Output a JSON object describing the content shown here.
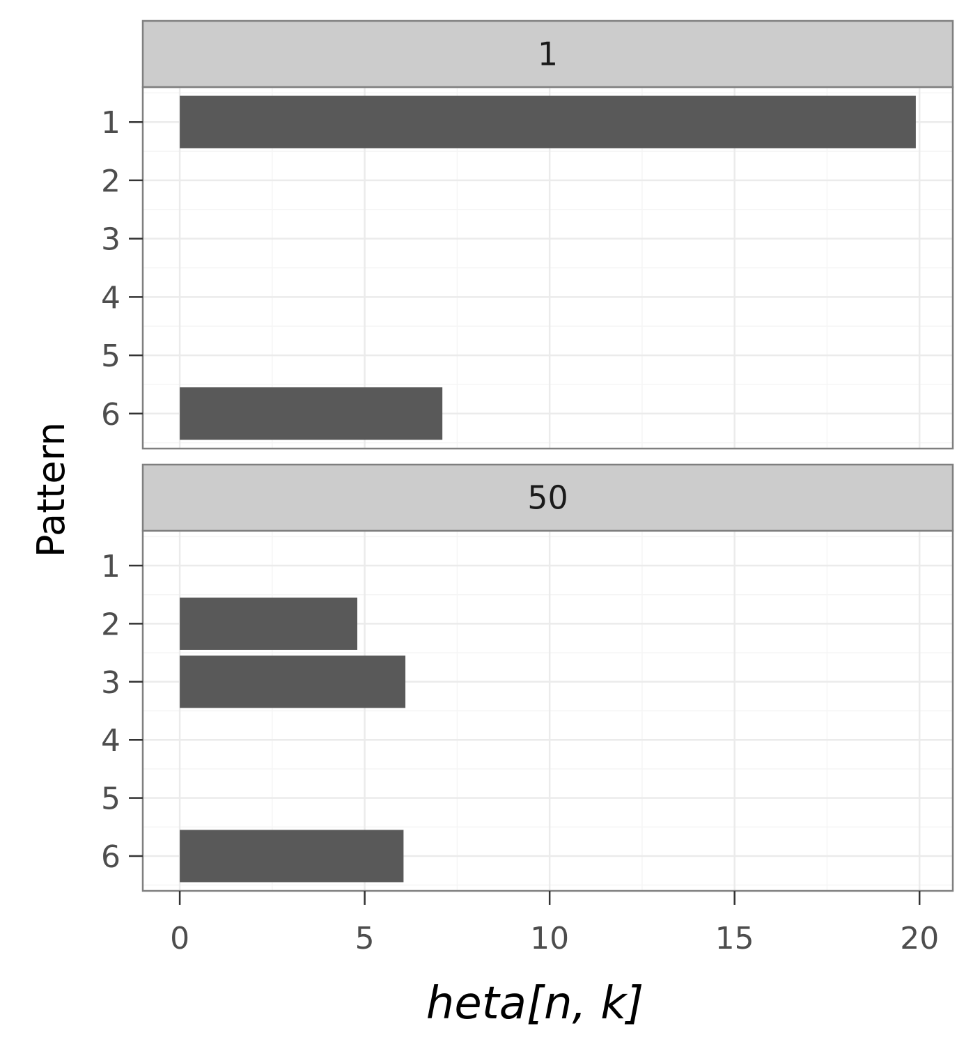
{
  "chart_data": {
    "type": "bar",
    "orientation": "horizontal",
    "xlabel": "heta[n, k]",
    "ylabel": "Pattern",
    "xlim": [
      -1,
      20.9
    ],
    "x_ticks": [
      0,
      5,
      10,
      15,
      20
    ],
    "x_tick_labels": [
      "0",
      "5",
      "10",
      "15",
      "20"
    ],
    "categories": [
      "1",
      "2",
      "3",
      "4",
      "5",
      "6"
    ],
    "grid": true,
    "panels": [
      {
        "label": "1",
        "values": [
          19.9,
          0,
          0,
          0,
          0,
          7.1
        ]
      },
      {
        "label": "50",
        "values": [
          0,
          4.8,
          6.1,
          0,
          0,
          6.05
        ]
      }
    ],
    "colors": {
      "bar": "#595959",
      "strip_fill": "#cccccc",
      "panel_border": "#7f7f7f",
      "grid_major": "#ebebeb",
      "grid_minor": "#f5f5f5"
    }
  }
}
